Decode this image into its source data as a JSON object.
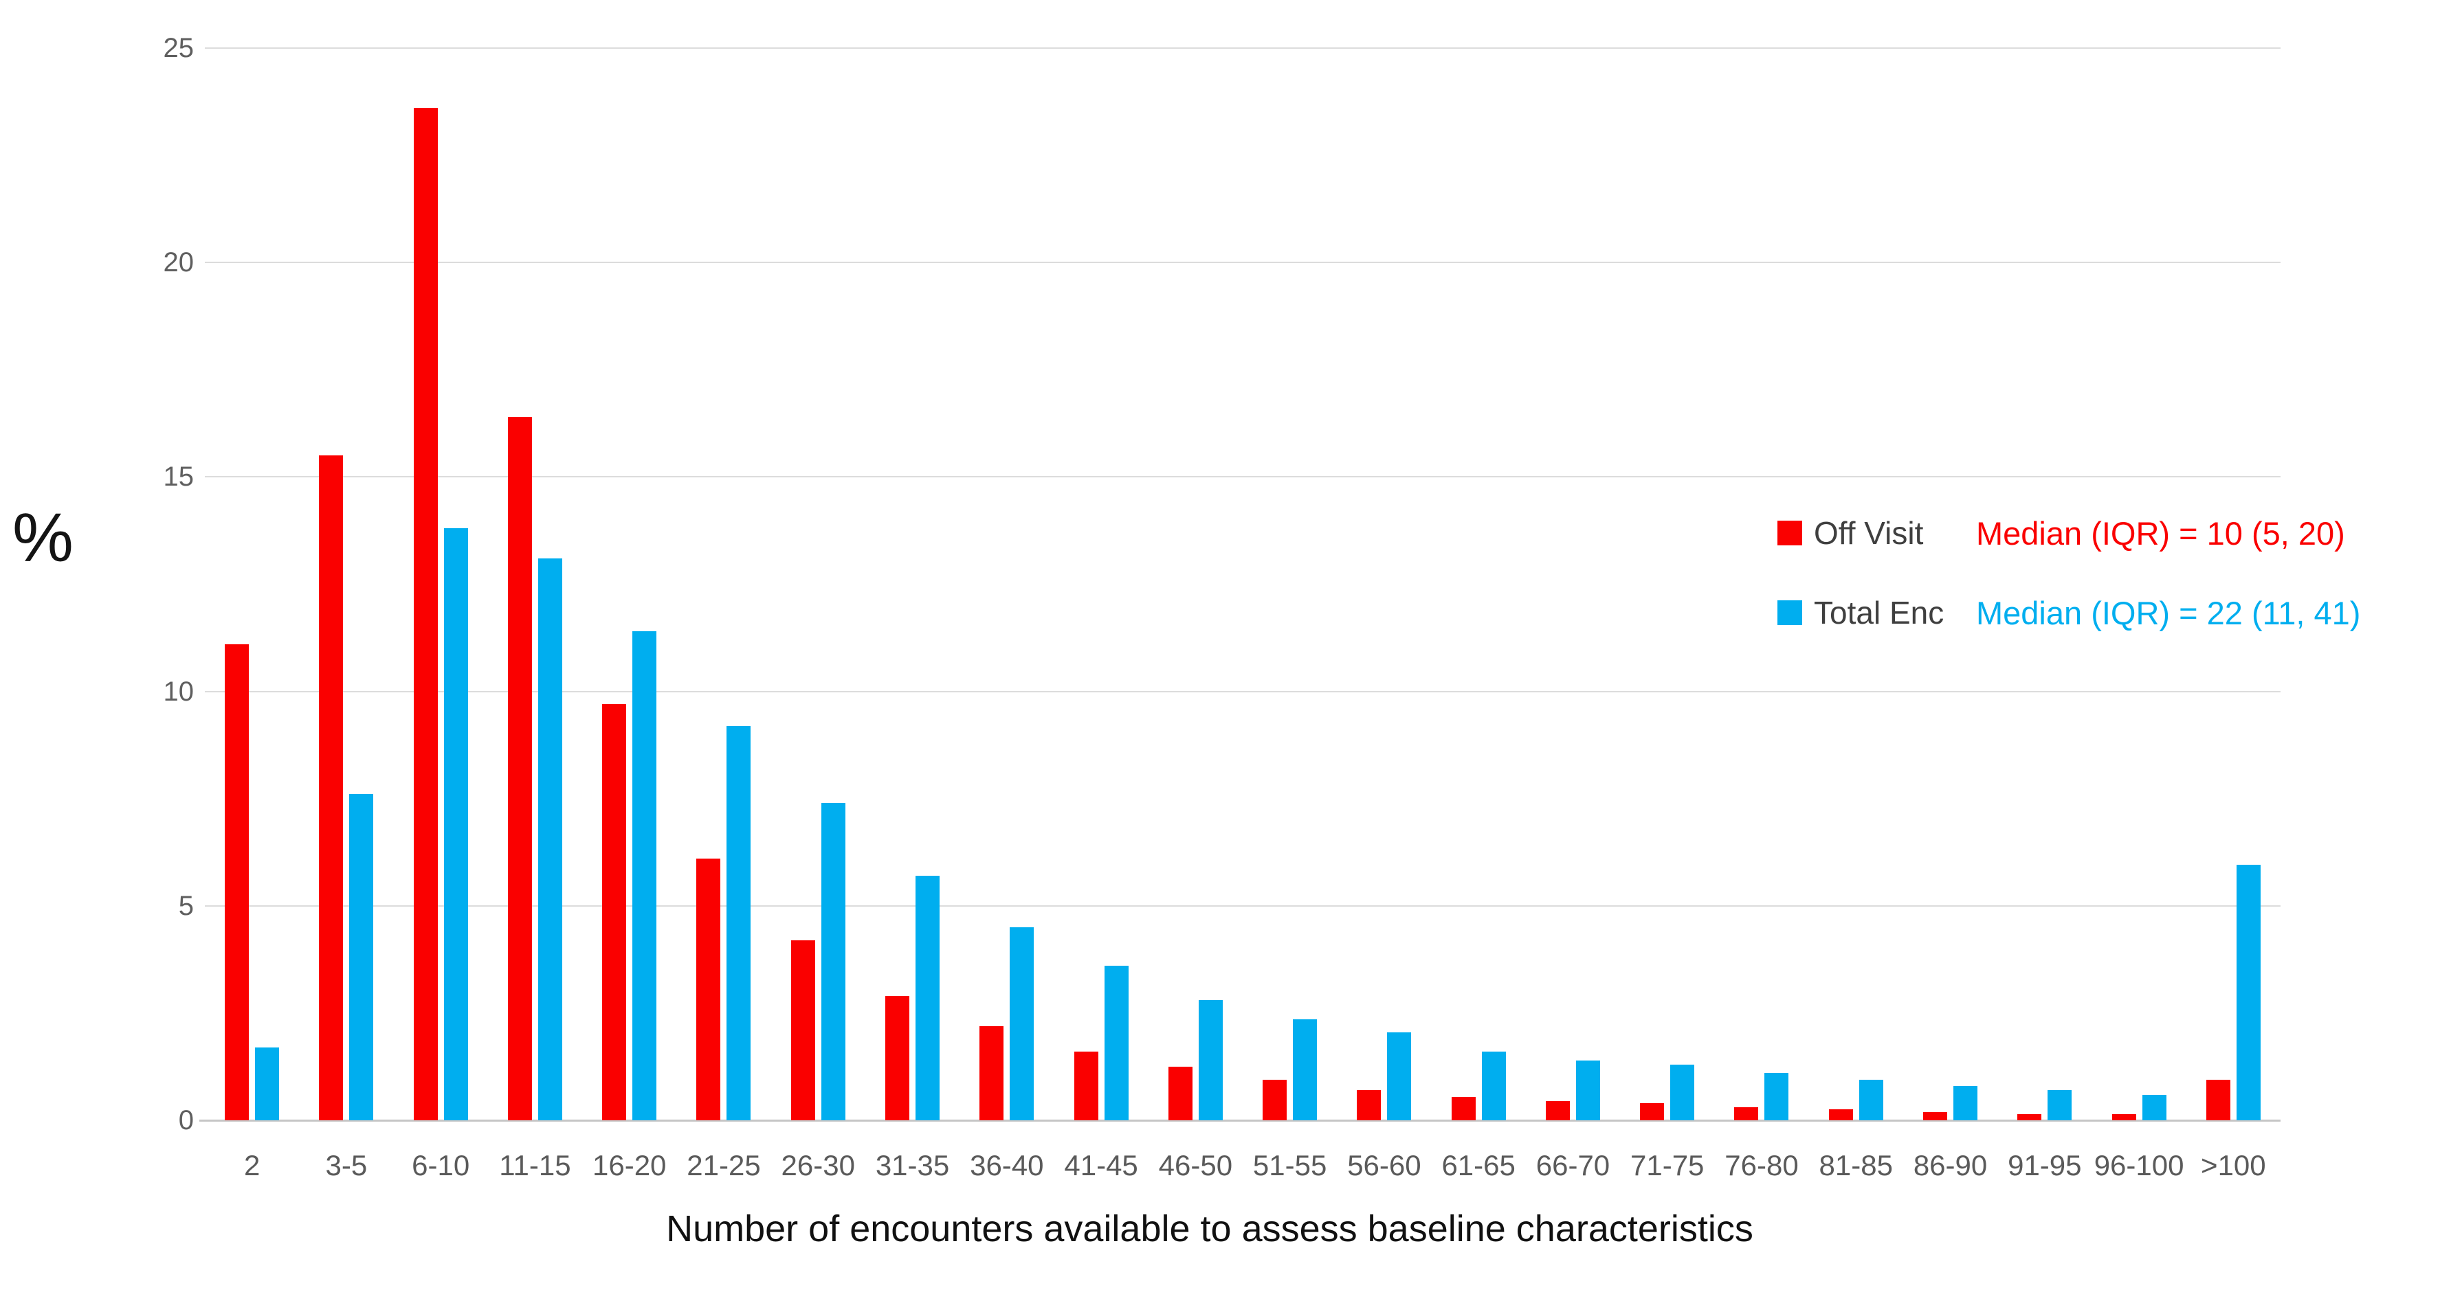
{
  "chart_data": {
    "type": "bar",
    "title": "",
    "xlabel": "Number of encounters available to assess baseline characteristics",
    "ylabel": "%",
    "ylim": [
      0,
      25
    ],
    "yticks": [
      0,
      5,
      10,
      15,
      20,
      25
    ],
    "grid": true,
    "legend_position": "right-middle",
    "categories": [
      "2",
      "3-5",
      "6-10",
      "11-15",
      "16-20",
      "21-25",
      "26-30",
      "31-35",
      "36-40",
      "41-45",
      "46-50",
      "51-55",
      "56-60",
      "61-65",
      "66-70",
      "71-75",
      "76-80",
      "81-85",
      "86-90",
      "91-95",
      "96-100",
      ">100"
    ],
    "series": [
      {
        "name": "Off Visit",
        "color": "#FA0000",
        "annotation": "Median (IQR) = 10 (5, 20)",
        "values": [
          11.1,
          15.5,
          23.6,
          16.4,
          9.7,
          6.1,
          4.2,
          2.9,
          2.2,
          1.6,
          1.25,
          0.95,
          0.7,
          0.55,
          0.45,
          0.4,
          0.3,
          0.25,
          0.2,
          0.15,
          0.15,
          0.95
        ]
      },
      {
        "name": "Total Enc",
        "color": "#00AEEF",
        "annotation": "Median (IQR) = 22 (11, 41)",
        "values": [
          1.7,
          7.6,
          13.8,
          13.1,
          11.4,
          9.2,
          7.4,
          5.7,
          4.5,
          3.6,
          2.8,
          2.35,
          2.05,
          1.6,
          1.4,
          1.3,
          1.1,
          0.95,
          0.8,
          0.7,
          0.6,
          5.95
        ]
      }
    ],
    "colors": {
      "gridline": "#dcdcdc",
      "axis_line": "#c6c6c6",
      "tick_label": "#5a5a5a",
      "legend_label": "#3f3f3f",
      "title_text": "#111111"
    }
  }
}
